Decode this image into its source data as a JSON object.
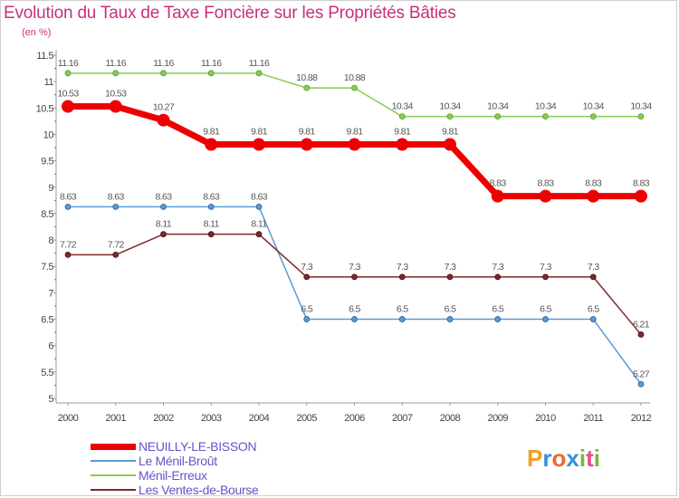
{
  "title": "Evolution du Taux de Taxe Foncière sur les Propriétés Bâties",
  "unit_label": "(en %)",
  "logo": {
    "text": "Proxiti",
    "letters": [
      {
        "ch": "P",
        "color": "#f0a020"
      },
      {
        "ch": "r",
        "color": "#3a8fd8"
      },
      {
        "ch": "o",
        "color": "#e86a2a"
      },
      {
        "ch": "x",
        "color": "#3a8fd8"
      },
      {
        "ch": "i",
        "color": "#7ab83a"
      },
      {
        "ch": "t",
        "color": "#e84a8a"
      },
      {
        "ch": "i",
        "color": "#7ab83a"
      }
    ]
  },
  "chart_data": {
    "type": "line",
    "title": "Evolution du Taux de Taxe Foncière sur les Propriétés Bâties",
    "ylabel": "(en %)",
    "xlabel": "",
    "ylim": [
      5,
      11.5
    ],
    "y_ticks": [
      "5",
      "5.5",
      "6",
      "6.5",
      "7",
      "7.5",
      "8",
      "8.5",
      "9",
      "9.5",
      "10",
      "10.5",
      "11",
      "11.5"
    ],
    "grid": false,
    "legend_position": "bottom-left",
    "x": [
      "2000",
      "2001",
      "2002",
      "2003",
      "2004",
      "2005",
      "2006",
      "2007",
      "2008",
      "2009",
      "2010",
      "2011",
      "2012"
    ],
    "series": [
      {
        "name": "Ménil-Erreux",
        "color": "#88cc55",
        "values": [
          11.16,
          11.16,
          11.16,
          11.16,
          11.16,
          10.88,
          10.88,
          10.34,
          10.34,
          10.34,
          10.34,
          10.34,
          10.34
        ],
        "labels": [
          "11.16",
          "11.16",
          "11.16",
          "11.16",
          "11.16",
          "10.88",
          "10.88",
          "10.34",
          "10.34",
          "10.34",
          "10.34",
          "10.34",
          "10.34"
        ]
      },
      {
        "name": "Le Ménil-Broût",
        "color": "#5b9bd5",
        "values": [
          8.63,
          8.63,
          8.63,
          8.63,
          8.63,
          6.5,
          6.5,
          6.5,
          6.5,
          6.5,
          6.5,
          6.5,
          5.27
        ],
        "labels": [
          "8.63",
          "8.63",
          "8.63",
          "8.63",
          "8.63",
          "6.5",
          "6.5",
          "6.5",
          "6.5",
          "6.5",
          "6.5",
          "6.5",
          "5.27"
        ]
      },
      {
        "name": "Les Ventes-de-Bourse",
        "color": "#7a2a2a",
        "values": [
          7.72,
          7.72,
          8.11,
          8.11,
          8.11,
          7.3,
          7.3,
          7.3,
          7.3,
          7.3,
          7.3,
          7.3,
          6.21
        ],
        "labels": [
          "7.72",
          "7.72",
          "8.11",
          "8.11",
          "8.11",
          "7.3",
          "7.3",
          "7.3",
          "7.3",
          "7.3",
          "7.3",
          "7.3",
          "6.21"
        ]
      },
      {
        "name": "NEUILLY-LE-BISSON",
        "color": "#ee0000",
        "values": [
          10.53,
          10.53,
          10.27,
          9.81,
          9.81,
          9.81,
          9.81,
          9.81,
          9.81,
          8.83,
          8.83,
          8.83,
          8.83
        ],
        "labels": [
          "10.53",
          "10.53",
          "10.27",
          "9.81",
          "9.81",
          "9.81",
          "9.81",
          "9.81",
          "9.81",
          "8.83",
          "8.83",
          "8.83",
          "8.83"
        ]
      }
    ],
    "legend_order": [
      "NEUILLY-LE-BISSON",
      "Le Ménil-Broût",
      "Ménil-Erreux",
      "Les Ventes-de-Bourse"
    ]
  }
}
